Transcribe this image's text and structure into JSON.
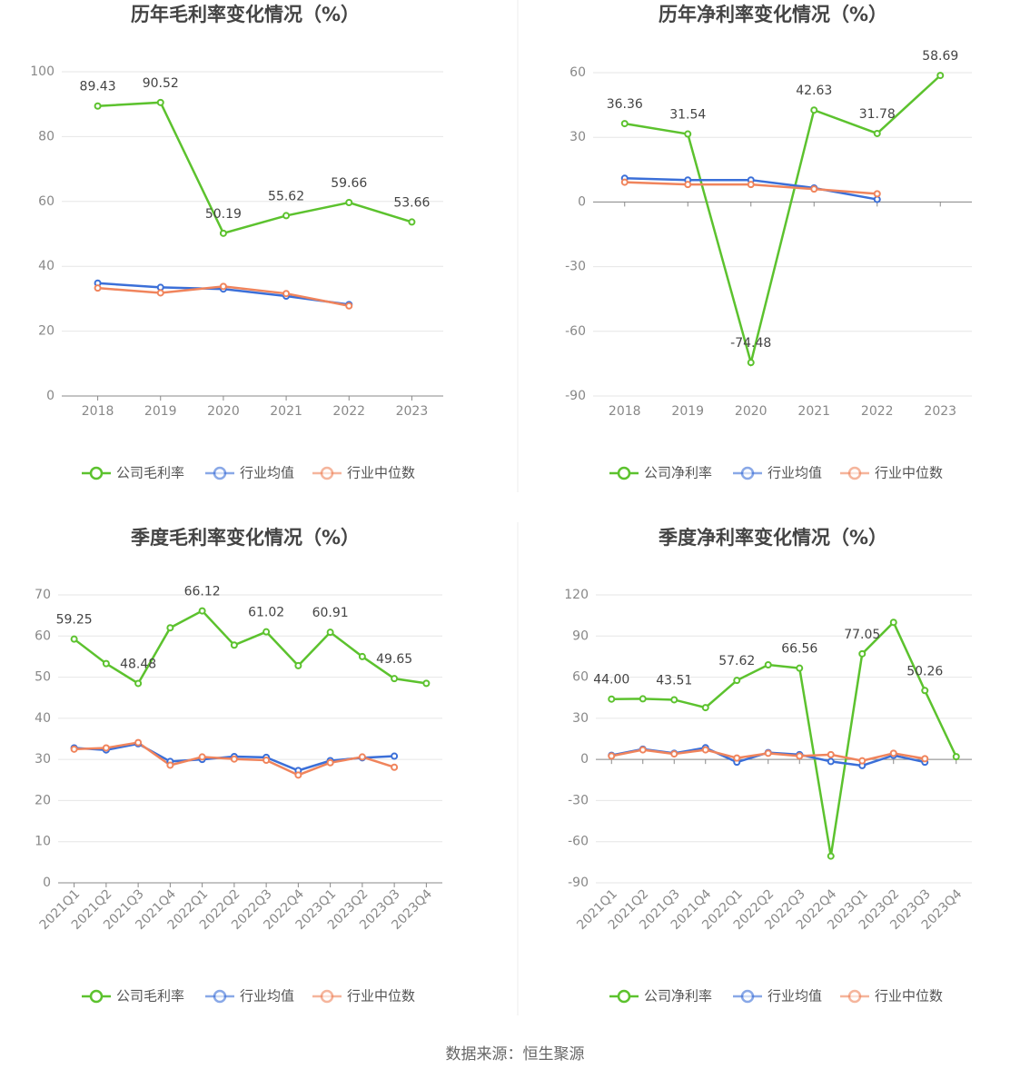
{
  "chart_data": [
    {
      "type": "line",
      "title": "历年毛利率变化情况（%）",
      "categories": [
        "2018",
        "2019",
        "2020",
        "2021",
        "2022",
        "2023"
      ],
      "series": [
        {
          "name": "公司毛利率",
          "color": "#5cc22e",
          "values": [
            89.43,
            90.52,
            50.19,
            55.62,
            59.66,
            53.66
          ],
          "value_labels": [
            "89.43",
            "90.52",
            "50.19",
            "55.62",
            "59.66",
            "53.66"
          ]
        },
        {
          "name": "行业均值",
          "color": "#3b6fd8",
          "values": [
            34.8,
            33.5,
            33.0,
            30.8,
            28.2,
            null
          ]
        },
        {
          "name": "行业中位数",
          "color": "#f0845c",
          "values": [
            33.3,
            31.8,
            33.8,
            31.6,
            27.8,
            null
          ]
        }
      ],
      "ylim": [
        0,
        100
      ],
      "yticks": [
        0,
        20,
        40,
        60,
        80,
        100
      ],
      "grid": true
    },
    {
      "type": "line",
      "title": "历年净利率变化情况（%）",
      "categories": [
        "2018",
        "2019",
        "2020",
        "2021",
        "2022",
        "2023"
      ],
      "series": [
        {
          "name": "公司净利率",
          "color": "#5cc22e",
          "values": [
            36.36,
            31.54,
            -74.48,
            42.63,
            31.78,
            58.69
          ],
          "value_labels": [
            "36.36",
            "31.54",
            "-74.48",
            "42.63",
            "31.78",
            "58.69"
          ]
        },
        {
          "name": "行业均值",
          "color": "#3b6fd8",
          "values": [
            11.0,
            10.2,
            10.2,
            6.5,
            1.2,
            null
          ]
        },
        {
          "name": "行业中位数",
          "color": "#f0845c",
          "values": [
            9.2,
            8.1,
            8.1,
            6.0,
            3.8,
            null
          ]
        }
      ],
      "ylim": [
        -90,
        60
      ],
      "yticks": [
        -90,
        -60,
        -30,
        0,
        30,
        60
      ],
      "grid": true
    },
    {
      "type": "line",
      "title": "季度毛利率变化情况（%）",
      "categories": [
        "2021Q1",
        "2021Q2",
        "2021Q3",
        "2021Q4",
        "2022Q1",
        "2022Q2",
        "2022Q3",
        "2022Q4",
        "2023Q1",
        "2023Q2",
        "2023Q3",
        "2023Q4"
      ],
      "series": [
        {
          "name": "公司毛利率",
          "color": "#5cc22e",
          "values": [
            59.25,
            53.3,
            48.48,
            62.0,
            66.12,
            57.8,
            61.02,
            52.8,
            60.91,
            55.0,
            49.65,
            48.5
          ],
          "value_labels": [
            "59.25",
            null,
            "48.48",
            null,
            "66.12",
            null,
            "61.02",
            null,
            "60.91",
            null,
            "49.65",
            null
          ]
        },
        {
          "name": "行业均值",
          "color": "#3b6fd8",
          "values": [
            32.8,
            32.3,
            33.8,
            29.5,
            30.0,
            30.7,
            30.5,
            27.3,
            29.7,
            30.4,
            30.8,
            null
          ]
        },
        {
          "name": "行业中位数",
          "color": "#f0845c",
          "values": [
            32.5,
            32.8,
            34.1,
            28.6,
            30.6,
            30.1,
            29.8,
            26.2,
            29.2,
            30.6,
            28.1,
            null
          ]
        }
      ],
      "ylim": [
        0,
        70
      ],
      "yticks": [
        0,
        10,
        20,
        30,
        40,
        50,
        60,
        70
      ],
      "grid": true
    },
    {
      "type": "line",
      "title": "季度净利率变化情况（%）",
      "categories": [
        "2021Q1",
        "2021Q2",
        "2021Q3",
        "2021Q4",
        "2022Q1",
        "2022Q2",
        "2022Q3",
        "2022Q4",
        "2023Q1",
        "2023Q2",
        "2023Q3",
        "2023Q4"
      ],
      "series": [
        {
          "name": "公司净利率",
          "color": "#5cc22e",
          "values": [
            44.0,
            44.2,
            43.51,
            37.8,
            57.62,
            69.0,
            66.56,
            -70.5,
            77.05,
            100.0,
            50.26,
            2.0
          ],
          "value_labels": [
            "44.00",
            null,
            "43.51",
            null,
            "57.62",
            null,
            "66.56",
            null,
            "77.05",
            null,
            "50.26",
            null
          ]
        },
        {
          "name": "行业均值",
          "color": "#3b6fd8",
          "values": [
            3.0,
            7.5,
            4.5,
            8.5,
            -2.0,
            5.0,
            3.5,
            -1.5,
            -4.5,
            3.0,
            -2.0,
            null
          ]
        },
        {
          "name": "行业中位数",
          "color": "#f0845c",
          "values": [
            2.5,
            7.0,
            4.0,
            7.0,
            1.0,
            4.5,
            2.5,
            3.5,
            -1.0,
            4.5,
            0.5,
            null
          ]
        }
      ],
      "ylim": [
        -90,
        120
      ],
      "yticks": [
        -90,
        -60,
        -30,
        0,
        30,
        60,
        90,
        120
      ],
      "grid": true
    }
  ],
  "source": "数据来源：恒生聚源"
}
